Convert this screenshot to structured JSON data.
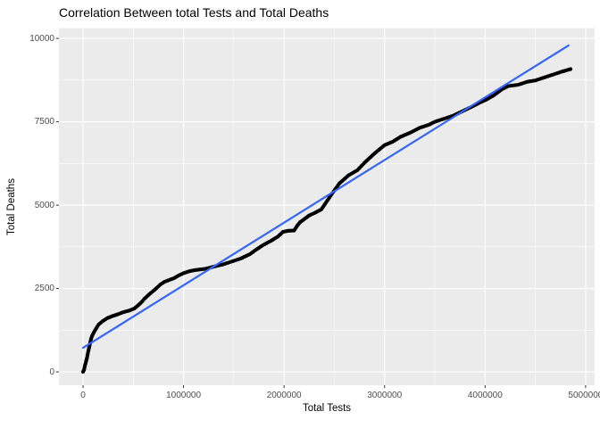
{
  "figure": {
    "background": "#FFFFFF"
  },
  "chart_data": {
    "type": "scatter",
    "title": "Correlation Between total Tests and Total Deaths",
    "xlabel": "Total Tests",
    "ylabel": "Total Deaths",
    "xlim": [
      -240000,
      5090000
    ],
    "ylim": [
      -400,
      10310
    ],
    "x_major_ticks": [
      0,
      1000000,
      2000000,
      3000000,
      4000000,
      5000000
    ],
    "x_tick_labels": [
      "0",
      "1000000",
      "2000000",
      "3000000",
      "4000000",
      "5000000"
    ],
    "x_minor_ticks": [
      500000,
      1500000,
      2500000,
      3500000,
      4500000
    ],
    "y_major_ticks": [
      0,
      2500,
      5000,
      7500,
      10000
    ],
    "y_tick_labels": [
      "0",
      "2500",
      "5000",
      "7500",
      "10000"
    ],
    "y_minor_ticks": [
      1250,
      3750,
      6250,
      8750
    ],
    "grid": true,
    "legend": "none",
    "panel_bg": "#EBEBEB",
    "grid_color": "#FFFFFF",
    "tick_color": "#333333",
    "tick_label_color": "#4D4D4D",
    "point_color": "#000000",
    "smooth_line": {
      "type": "linear",
      "x": [
        0,
        4830000
      ],
      "y": [
        720,
        9790
      ],
      "color": "#3366FF"
    },
    "series": [
      {
        "name": "Total Deaths vs Total Tests",
        "points": [
          [
            0,
            0
          ],
          [
            10000,
            60
          ],
          [
            20000,
            200
          ],
          [
            30000,
            310
          ],
          [
            40000,
            430
          ],
          [
            50000,
            590
          ],
          [
            60000,
            720
          ],
          [
            70000,
            860
          ],
          [
            80000,
            990
          ],
          [
            90000,
            1080
          ],
          [
            105000,
            1170
          ],
          [
            130000,
            1300
          ],
          [
            155000,
            1420
          ],
          [
            195000,
            1520
          ],
          [
            240000,
            1610
          ],
          [
            280000,
            1660
          ],
          [
            340000,
            1720
          ],
          [
            400000,
            1790
          ],
          [
            460000,
            1840
          ],
          [
            510000,
            1900
          ],
          [
            550000,
            2000
          ],
          [
            585000,
            2100
          ],
          [
            610000,
            2190
          ],
          [
            660000,
            2330
          ],
          [
            700000,
            2430
          ],
          [
            730000,
            2510
          ],
          [
            770000,
            2620
          ],
          [
            810000,
            2700
          ],
          [
            860000,
            2760
          ],
          [
            905000,
            2810
          ],
          [
            950000,
            2890
          ],
          [
            1000000,
            2960
          ],
          [
            1060000,
            3020
          ],
          [
            1110000,
            3050
          ],
          [
            1160000,
            3070
          ],
          [
            1215000,
            3090
          ],
          [
            1270000,
            3130
          ],
          [
            1330000,
            3180
          ],
          [
            1390000,
            3220
          ],
          [
            1480000,
            3310
          ],
          [
            1570000,
            3400
          ],
          [
            1660000,
            3530
          ],
          [
            1720000,
            3660
          ],
          [
            1790000,
            3800
          ],
          [
            1870000,
            3930
          ],
          [
            1940000,
            4060
          ],
          [
            1990000,
            4200
          ],
          [
            2040000,
            4230
          ],
          [
            2100000,
            4240
          ],
          [
            2130000,
            4380
          ],
          [
            2160000,
            4490
          ],
          [
            2210000,
            4600
          ],
          [
            2250000,
            4690
          ],
          [
            2300000,
            4760
          ],
          [
            2370000,
            4870
          ],
          [
            2400000,
            5000
          ],
          [
            2460000,
            5270
          ],
          [
            2550000,
            5650
          ],
          [
            2640000,
            5890
          ],
          [
            2730000,
            6050
          ],
          [
            2810000,
            6300
          ],
          [
            2900000,
            6550
          ],
          [
            3000000,
            6800
          ],
          [
            3080000,
            6900
          ],
          [
            3160000,
            7050
          ],
          [
            3260000,
            7180
          ],
          [
            3350000,
            7320
          ],
          [
            3440000,
            7410
          ],
          [
            3500000,
            7500
          ],
          [
            3590000,
            7590
          ],
          [
            3680000,
            7680
          ],
          [
            3770000,
            7810
          ],
          [
            3860000,
            7940
          ],
          [
            3950000,
            8080
          ],
          [
            4010000,
            8160
          ],
          [
            4090000,
            8300
          ],
          [
            4170000,
            8480
          ],
          [
            4230000,
            8570
          ],
          [
            4330000,
            8610
          ],
          [
            4420000,
            8700
          ],
          [
            4500000,
            8740
          ],
          [
            4590000,
            8830
          ],
          [
            4680000,
            8920
          ],
          [
            4770000,
            9010
          ],
          [
            4850000,
            9080
          ]
        ]
      }
    ]
  }
}
